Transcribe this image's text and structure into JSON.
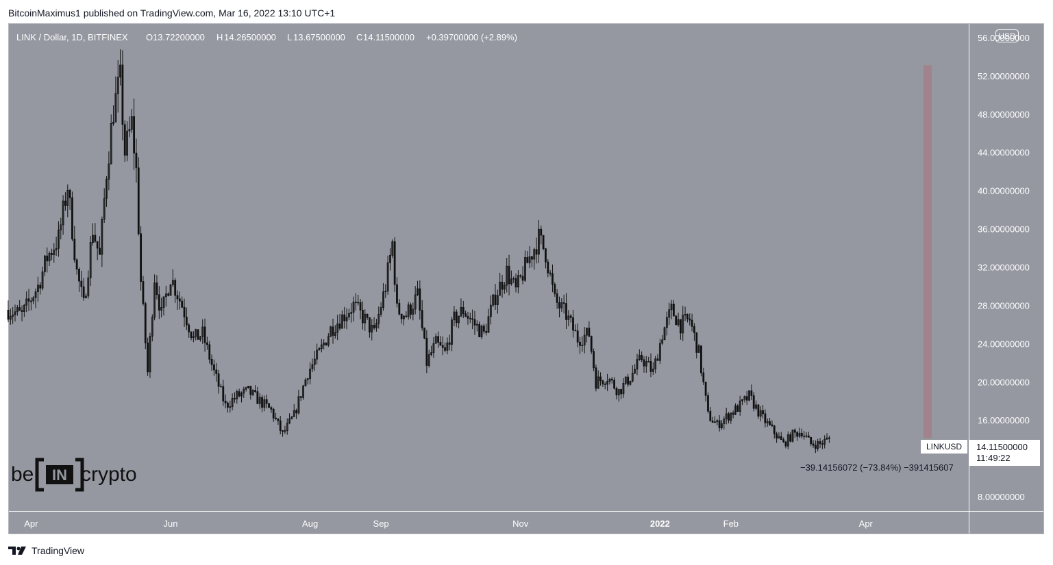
{
  "header": {
    "publisher": "BitcoinMaximus1 published on TradingView.com, Mar 16, 2022 13:10 UTC+1"
  },
  "footer": {
    "brand": "TradingView",
    "logo_icon": "tradingview-logo-icon"
  },
  "watermark": {
    "prefix": "be",
    "middle": "IN",
    "suffix": "crypto"
  },
  "colors": {
    "chart_background": "#9598a1",
    "candle": "#111111",
    "range_bar": "#a0838c",
    "axis_text": "#ffffff"
  },
  "chart_data": {
    "type": "candlestick",
    "symbol_line": {
      "symbol": "LINK / Dollar, 1D, BITFINEX",
      "o_label": "O",
      "o_value": "13.72200000",
      "h_label": "H",
      "h_value": "14.26500000",
      "l_label": "L",
      "l_value": "13.67500000",
      "c_label": "C",
      "c_value": "14.11500000",
      "change": "+0.39700000 (+2.89%)"
    },
    "currency": "USD",
    "y_ticks": [
      {
        "value": 56,
        "label": "56.00000000"
      },
      {
        "value": 52,
        "label": "52.00000000"
      },
      {
        "value": 48,
        "label": "48.00000000"
      },
      {
        "value": 44,
        "label": "44.00000000"
      },
      {
        "value": 40,
        "label": "40.00000000"
      },
      {
        "value": 36,
        "label": "36.00000000"
      },
      {
        "value": 32,
        "label": "32.00000000"
      },
      {
        "value": 28,
        "label": "28.00000000"
      },
      {
        "value": 24,
        "label": "24.00000000"
      },
      {
        "value": 20,
        "label": "20.00000000"
      },
      {
        "value": 16,
        "label": "16.00000000"
      },
      {
        "value": 12,
        "label": "12.00000000"
      },
      {
        "value": 8,
        "label": "8.00000000"
      }
    ],
    "x_ticks": [
      {
        "date": "2021-04-01",
        "label": "Apr",
        "bold": false
      },
      {
        "date": "2021-06-01",
        "label": "Jun",
        "bold": false
      },
      {
        "date": "2021-08-01",
        "label": "Aug",
        "bold": false
      },
      {
        "date": "2021-09-01",
        "label": "Sep",
        "bold": false
      },
      {
        "date": "2021-11-01",
        "label": "Nov",
        "bold": false
      },
      {
        "date": "2022-01-01",
        "label": "2022",
        "bold": true
      },
      {
        "date": "2022-02-01",
        "label": "Feb",
        "bold": false
      },
      {
        "date": "2022-04-01",
        "label": "Apr",
        "bold": false
      }
    ],
    "x_range": [
      "2021-03-22",
      "2022-05-16"
    ],
    "y_range": [
      6.5,
      57.5
    ],
    "price_points": [
      {
        "date": "2021-03-22",
        "price": 27.5
      },
      {
        "date": "2021-03-28",
        "price": 27.0
      },
      {
        "date": "2021-04-04",
        "price": 30.0
      },
      {
        "date": "2021-04-08",
        "price": 33.0
      },
      {
        "date": "2021-04-13",
        "price": 35.0
      },
      {
        "date": "2021-04-17",
        "price": 40.5
      },
      {
        "date": "2021-04-21",
        "price": 31.5
      },
      {
        "date": "2021-04-24",
        "price": 28.0
      },
      {
        "date": "2021-04-28",
        "price": 36.0
      },
      {
        "date": "2021-05-01",
        "price": 33.0
      },
      {
        "date": "2021-05-04",
        "price": 42.0
      },
      {
        "date": "2021-05-07",
        "price": 48.5
      },
      {
        "date": "2021-05-10",
        "price": 51.5
      },
      {
        "date": "2021-05-12",
        "price": 44.0
      },
      {
        "date": "2021-05-15",
        "price": 47.0
      },
      {
        "date": "2021-05-17",
        "price": 42.0
      },
      {
        "date": "2021-05-19",
        "price": 30.5
      },
      {
        "date": "2021-05-22",
        "price": 21.0
      },
      {
        "date": "2021-05-25",
        "price": 31.0
      },
      {
        "date": "2021-05-28",
        "price": 27.0
      },
      {
        "date": "2021-06-01",
        "price": 31.0
      },
      {
        "date": "2021-06-06",
        "price": 28.0
      },
      {
        "date": "2021-06-11",
        "price": 24.5
      },
      {
        "date": "2021-06-15",
        "price": 25.0
      },
      {
        "date": "2021-06-20",
        "price": 21.0
      },
      {
        "date": "2021-06-25",
        "price": 17.5
      },
      {
        "date": "2021-06-30",
        "price": 18.5
      },
      {
        "date": "2021-07-05",
        "price": 19.0
      },
      {
        "date": "2021-07-10",
        "price": 18.0
      },
      {
        "date": "2021-07-15",
        "price": 17.0
      },
      {
        "date": "2021-07-20",
        "price": 14.5
      },
      {
        "date": "2021-07-25",
        "price": 16.5
      },
      {
        "date": "2021-07-31",
        "price": 21.0
      },
      {
        "date": "2021-08-05",
        "price": 23.0
      },
      {
        "date": "2021-08-10",
        "price": 25.5
      },
      {
        "date": "2021-08-14",
        "price": 26.5
      },
      {
        "date": "2021-08-20",
        "price": 28.0
      },
      {
        "date": "2021-08-25",
        "price": 26.5
      },
      {
        "date": "2021-08-29",
        "price": 25.0
      },
      {
        "date": "2021-09-03",
        "price": 30.0
      },
      {
        "date": "2021-09-06",
        "price": 34.5
      },
      {
        "date": "2021-09-08",
        "price": 27.5
      },
      {
        "date": "2021-09-12",
        "price": 27.0
      },
      {
        "date": "2021-09-17",
        "price": 29.0
      },
      {
        "date": "2021-09-21",
        "price": 22.0
      },
      {
        "date": "2021-09-25",
        "price": 24.0
      },
      {
        "date": "2021-09-29",
        "price": 23.0
      },
      {
        "date": "2021-10-03",
        "price": 26.5
      },
      {
        "date": "2021-10-07",
        "price": 27.5
      },
      {
        "date": "2021-10-12",
        "price": 26.0
      },
      {
        "date": "2021-10-16",
        "price": 25.0
      },
      {
        "date": "2021-10-21",
        "price": 29.0
      },
      {
        "date": "2021-10-26",
        "price": 31.5
      },
      {
        "date": "2021-10-30",
        "price": 29.5
      },
      {
        "date": "2021-11-04",
        "price": 32.5
      },
      {
        "date": "2021-11-09",
        "price": 35.0
      },
      {
        "date": "2021-11-12",
        "price": 33.5
      },
      {
        "date": "2021-11-16",
        "price": 28.5
      },
      {
        "date": "2021-11-21",
        "price": 27.0
      },
      {
        "date": "2021-11-26",
        "price": 24.5
      },
      {
        "date": "2021-12-01",
        "price": 25.0
      },
      {
        "date": "2021-12-04",
        "price": 20.0
      },
      {
        "date": "2021-12-09",
        "price": 20.5
      },
      {
        "date": "2021-12-14",
        "price": 19.0
      },
      {
        "date": "2021-12-19",
        "price": 20.5
      },
      {
        "date": "2021-12-24",
        "price": 22.5
      },
      {
        "date": "2021-12-29",
        "price": 21.0
      },
      {
        "date": "2022-01-02",
        "price": 25.0
      },
      {
        "date": "2022-01-06",
        "price": 27.5
      },
      {
        "date": "2022-01-10",
        "price": 26.0
      },
      {
        "date": "2022-01-14",
        "price": 26.5
      },
      {
        "date": "2022-01-18",
        "price": 23.0
      },
      {
        "date": "2022-01-22",
        "price": 16.5
      },
      {
        "date": "2022-01-26",
        "price": 15.5
      },
      {
        "date": "2022-01-31",
        "price": 16.5
      },
      {
        "date": "2022-02-05",
        "price": 17.5
      },
      {
        "date": "2022-02-09",
        "price": 18.5
      },
      {
        "date": "2022-02-14",
        "price": 16.5
      },
      {
        "date": "2022-02-19",
        "price": 15.0
      },
      {
        "date": "2022-02-24",
        "price": 13.5
      },
      {
        "date": "2022-02-28",
        "price": 14.5
      },
      {
        "date": "2022-03-04",
        "price": 14.8
      },
      {
        "date": "2022-03-08",
        "price": 13.5
      },
      {
        "date": "2022-03-12",
        "price": 13.5
      },
      {
        "date": "2022-03-16",
        "price": 14.1
      }
    ],
    "range_measure": {
      "start_date": "2022-04-28",
      "top_price": 53.1,
      "bottom_price": 14.1,
      "label": "−39.14156072 (−73.84%) −391415607"
    },
    "last_price": {
      "symbol": "LINKUSD",
      "value": "14.11500000",
      "countdown": "11:49:22",
      "price": 14.115
    }
  }
}
